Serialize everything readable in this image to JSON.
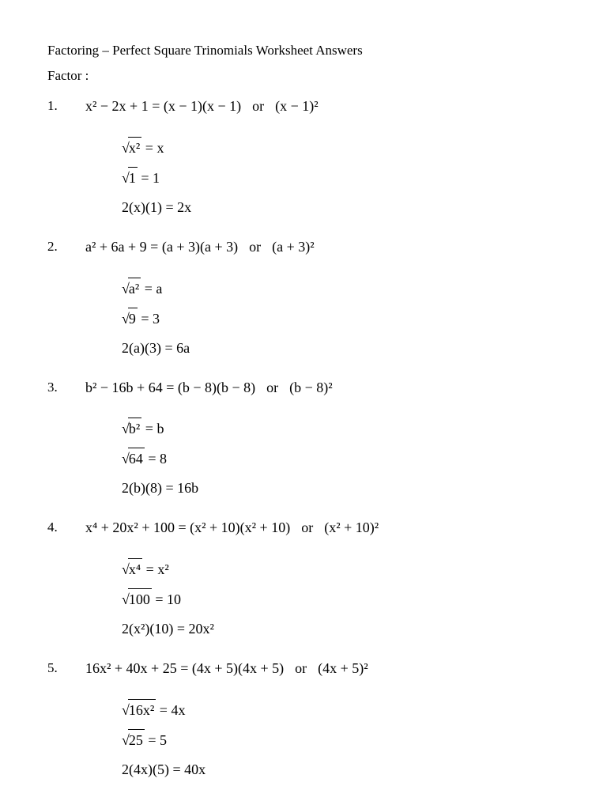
{
  "title": "Factoring – Perfect Square Trinomials Worksheet Answers",
  "subtitle": "Factor :",
  "problems": [
    {
      "num": "1.",
      "lhs": "x² − 2x + 1",
      "factored": "(x − 1)(x − 1)",
      "or": "or",
      "squared": "(x − 1)²",
      "sqrt1_arg": "x²",
      "sqrt1_res": "x",
      "sqrt2_arg": "1",
      "sqrt2_res": "1",
      "check_lhs": "2(x)(1)",
      "check_rhs": "2x"
    },
    {
      "num": "2.",
      "lhs": "a² + 6a + 9",
      "factored": "(a + 3)(a + 3)",
      "or": "or",
      "squared": "(a + 3)²",
      "sqrt1_arg": "a²",
      "sqrt1_res": "a",
      "sqrt2_arg": "9",
      "sqrt2_res": "3",
      "check_lhs": "2(a)(3)",
      "check_rhs": "6a"
    },
    {
      "num": "3.",
      "lhs": "b² − 16b + 64",
      "factored": "(b − 8)(b − 8)",
      "or": "or",
      "squared": "(b − 8)²",
      "sqrt1_arg": "b²",
      "sqrt1_res": "b",
      "sqrt2_arg": "64",
      "sqrt2_res": "8",
      "check_lhs": "2(b)(8)",
      "check_rhs": "16b"
    },
    {
      "num": "4.",
      "lhs": "x⁴ + 20x² + 100",
      "factored": "(x² + 10)(x² + 10)",
      "or": "or",
      "squared": "(x² + 10)²",
      "sqrt1_arg": "x⁴",
      "sqrt1_res": "x²",
      "sqrt2_arg": "100",
      "sqrt2_res": "10",
      "check_lhs": "2(x²)(10)",
      "check_rhs": "20x²"
    },
    {
      "num": "5.",
      "lhs": "16x² + 40x + 25",
      "factored": "(4x + 5)(4x + 5)",
      "or": "or",
      "squared": "(4x + 5)²",
      "sqrt1_arg": "16x²",
      "sqrt1_res": "4x",
      "sqrt2_arg": "25",
      "sqrt2_res": "5",
      "check_lhs": "2(4x)(5)",
      "check_rhs": "40x"
    }
  ]
}
